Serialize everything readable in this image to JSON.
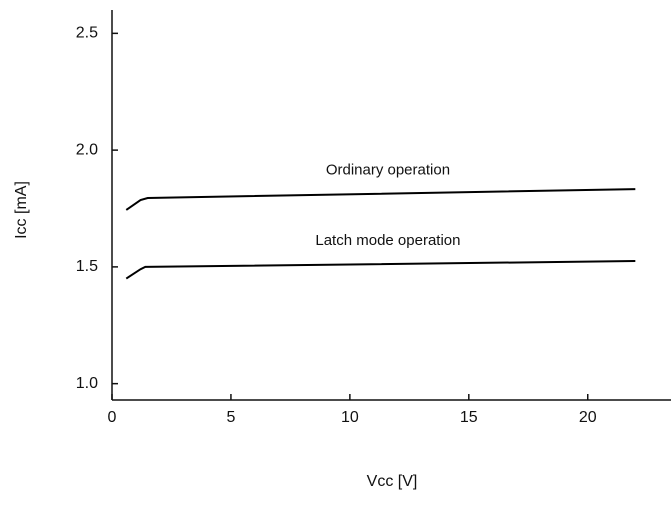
{
  "chart_data": {
    "type": "line",
    "x_label": "Vcc [V]",
    "y_label": "Icc [mA]",
    "xlim": [
      0,
      23.5
    ],
    "xticks": [
      0,
      5,
      10,
      15,
      20
    ],
    "ylim": [
      0.93,
      2.6
    ],
    "yticks": [
      {
        "value": 1.0,
        "label": "1.0"
      },
      1.5,
      {
        "value": 2.0,
        "label": "2.0"
      },
      2.5
    ],
    "series": [
      {
        "name": "Ordinary operation",
        "color": "#000000",
        "x": [
          0.6,
          1.2,
          1.5,
          22.0
        ],
        "values": [
          1.744,
          1.786,
          1.795,
          1.833
        ]
      },
      {
        "name": "Latch mode operation",
        "color": "#000000",
        "x": [
          0.6,
          1.2,
          1.4,
          22.0
        ],
        "values": [
          1.45,
          1.49,
          1.5,
          1.525
        ]
      }
    ]
  }
}
